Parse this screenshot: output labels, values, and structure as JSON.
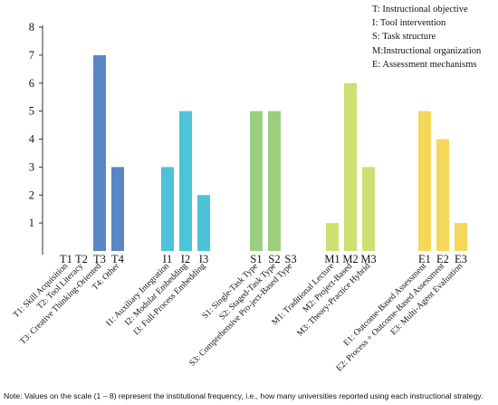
{
  "chart_data": {
    "type": "bar",
    "ylim": [
      0,
      8
    ],
    "yticks": [
      1,
      2,
      3,
      4,
      5,
      6,
      7,
      8
    ],
    "yaxis_tick_labels": [
      "1",
      "2",
      "3",
      "4",
      "5",
      "6",
      "7",
      "8"
    ],
    "grid": false,
    "legend_position": "top-right",
    "groups": [
      {
        "color": "#5b86c4",
        "codes": [
          "T1",
          "T2",
          "T3",
          "T4"
        ],
        "labels": [
          "T1: Skill Acquisition",
          "T2: Tool Literacy",
          "T3: Creative Thinking-Oriented",
          "T4: Other"
        ],
        "values": [
          0,
          0,
          7,
          3
        ]
      },
      {
        "color": "#4cc3d8",
        "codes": [
          "I1",
          "I2",
          "I3"
        ],
        "labels": [
          "I1: Auxiliary Integration",
          "I2: Modular Embedding",
          "I3: Full-Process Embedding"
        ],
        "values": [
          3,
          5,
          2
        ]
      },
      {
        "color": "#9ccf7d",
        "codes": [
          "S1",
          "S2",
          "S3"
        ],
        "labels": [
          "S1: Single-Task Type",
          "S2: Staged-Task Type",
          "S3: Comprehensive Pro-ject-Based Type"
        ],
        "values": [
          5,
          5,
          0
        ]
      },
      {
        "color": "#cde070",
        "codes": [
          "M1",
          "M2",
          "M3"
        ],
        "labels": [
          "M1: Traditional Lecture",
          "M2: Project-Based",
          "M3: Theory-Practice Hybrid"
        ],
        "values": [
          1,
          6,
          3
        ]
      },
      {
        "color": "#f5d85a",
        "codes": [
          "E1",
          "E2",
          "E3"
        ],
        "labels": [
          "E1: Outcome-Based Assessment",
          "E2: Process + Outcome-Based Assessment",
          "E3: Multi-Agent Evaluation"
        ],
        "values": [
          5,
          4,
          1
        ]
      }
    ]
  },
  "legend": [
    "T: Instructional objective",
    "I:  Tool intervention",
    "S: Task structure",
    "M:Instructional organization",
    "E: Assessment mechanisms"
  ],
  "note": "Note: Values on the scale (1 – 8) represent the institutional frequency, i.e., how many universities reported using each instructional strategy."
}
